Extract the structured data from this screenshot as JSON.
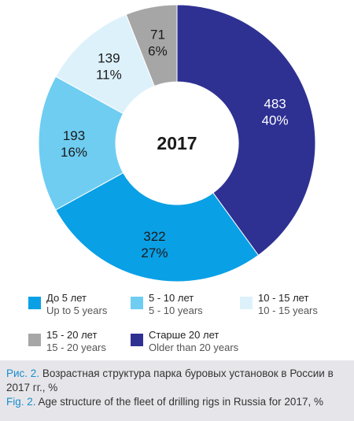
{
  "chart_data": {
    "type": "pie",
    "center_label": "2017",
    "slices": [
      {
        "count": "483",
        "percent": "40%",
        "value": 40,
        "color": "#2e3192",
        "label_color": "#ffffff"
      },
      {
        "count": "322",
        "percent": "27%",
        "value": 27,
        "color": "#0aa0e6",
        "label_color": "#1a1a1a"
      },
      {
        "count": "193",
        "percent": "16%",
        "value": 16,
        "color": "#6fcdf2",
        "label_color": "#1a1a1a"
      },
      {
        "count": "139",
        "percent": "11%",
        "value": 11,
        "color": "#ddf1fb",
        "label_color": "#1a1a1a"
      },
      {
        "count": "71",
        "percent": "6%",
        "value": 6,
        "color": "#a6a6a6",
        "label_color": "#1a1a1a"
      }
    ]
  },
  "legend": [
    {
      "ru": "До 5 лет",
      "en": "Up to 5 years",
      "color": "#0aa0e6"
    },
    {
      "ru": "5 - 10 лет",
      "en": "5 - 10 years",
      "color": "#6fcdf2"
    },
    {
      "ru": "10 - 15 лет",
      "en": "10 - 15 years",
      "color": "#ddf1fb"
    },
    {
      "ru": "15 - 20 лет",
      "en": "15 - 20 years",
      "color": "#a6a6a6"
    },
    {
      "ru": "Старше 20 лет",
      "en": "Older than 20 years",
      "color": "#2e3192"
    }
  ],
  "caption": {
    "ru_prefix": "Рис. 2.",
    "ru_text": "Возрастная структура парка буровых установок в России в 2017 гг., %",
    "en_prefix": "Fig. 2.",
    "en_text": "Age structure of the fleet of drilling rigs in Russia for 2017, %",
    "prefix_color": "#1a8ccf"
  }
}
